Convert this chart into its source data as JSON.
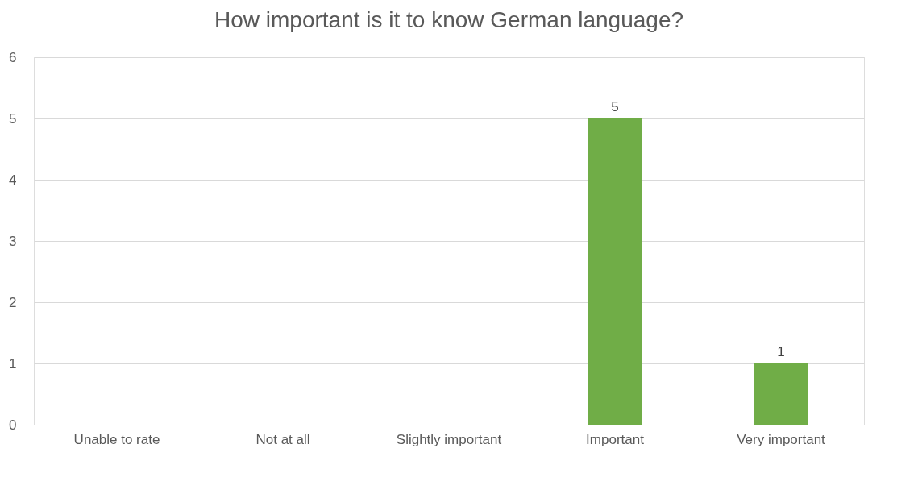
{
  "chart_data": {
    "type": "bar",
    "title": "How important is it to know German language?",
    "categories": [
      "Unable to rate",
      "Not at all",
      "Slightly important",
      "Important",
      "Very important"
    ],
    "values": [
      0,
      0,
      0,
      5,
      1
    ],
    "value_labels": [
      null,
      null,
      null,
      "5",
      "1"
    ],
    "color": "#70ad47",
    "ylim": [
      0,
      6
    ],
    "yticks": [
      0,
      1,
      2,
      3,
      4,
      5,
      6
    ],
    "grid": "y"
  }
}
